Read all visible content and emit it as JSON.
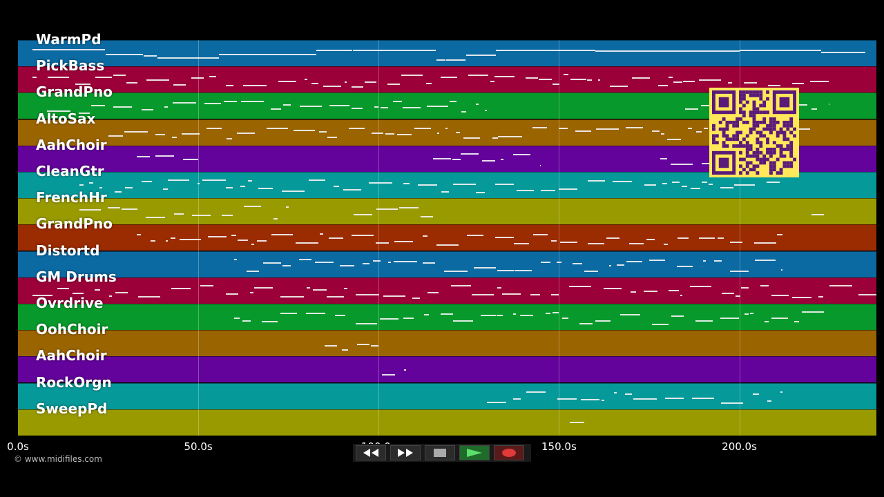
{
  "tracks": [
    {
      "name": "WarmPd",
      "color": "#0b6aa2"
    },
    {
      "name": "PickBass",
      "color": "#9b0038"
    },
    {
      "name": "GrandPno",
      "color": "#07992b"
    },
    {
      "name": "AltoSax",
      "color": "#9a6400"
    },
    {
      "name": "AahChoir",
      "color": "#63039b"
    },
    {
      "name": "CleanGtr",
      "color": "#06999a"
    },
    {
      "name": "FrenchHr",
      "color": "#999a00"
    },
    {
      "name": "GrandPno",
      "color": "#9b2b00"
    },
    {
      "name": "Distortd",
      "color": "#0b6aa2"
    },
    {
      "name": "GM Drums",
      "color": "#9b0038"
    },
    {
      "name": "Ovrdrive",
      "color": "#07992b"
    },
    {
      "name": "OohChoir",
      "color": "#9a6400"
    },
    {
      "name": "AahChoir",
      "color": "#63039b"
    },
    {
      "name": "RockOrgn",
      "color": "#06999a"
    },
    {
      "name": "SweepPd",
      "color": "#999a00"
    }
  ],
  "timeline": {
    "max_seconds": 238,
    "ticks": [
      "0.0s",
      "50.0s",
      "100.0s",
      "150.0s",
      "200.0s"
    ],
    "tick_values": [
      0,
      50,
      100,
      150,
      200
    ]
  },
  "copyright": "© www.midifiles.com",
  "controls": {
    "rewind": "rewind-icon",
    "fast_forward": "fast-forward-icon",
    "stop": "stop-icon",
    "play": "play-icon",
    "record": "record-icon"
  }
}
